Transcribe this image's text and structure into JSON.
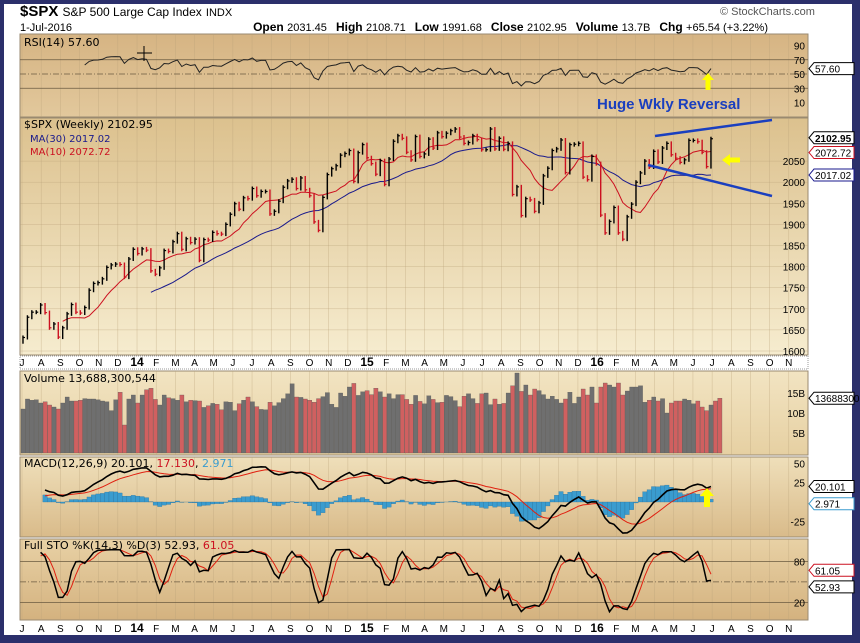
{
  "header": {
    "symbol": "$SPX",
    "name": "S&P 500 Large Cap Index",
    "exchange": "INDX",
    "date": "1-Jul-2016",
    "brand": "© StockCharts.com",
    "quote": [
      {
        "label": "Open",
        "value": "2031.45"
      },
      {
        "label": "High",
        "value": "2108.71"
      },
      {
        "label": "Low",
        "value": "1991.68"
      },
      {
        "label": "Close",
        "value": "2102.95"
      },
      {
        "label": "Volume",
        "value": "13.7B"
      },
      {
        "label": "Chg",
        "value": "+65.54 (+3.22%)"
      }
    ]
  },
  "colors": {
    "frame": "#2b2f6b",
    "up_bar": "#000000",
    "down_bar": "#cc1020",
    "ma30": "#1a1a8c",
    "ma10": "#cc1020",
    "volume_up": "#6f6f6f",
    "volume_down": "#d06060",
    "macd_hist": "#3a9ccf",
    "annotation": "#1a3fbf",
    "arrow": "#ffff00"
  },
  "chart_data": [
    {
      "type": "ohlc-weekly",
      "panel": "price",
      "title": "$SPX (Weekly) 2102.95",
      "legend": [
        {
          "name": "MA(30) 2017.02",
          "color": "#1a1a8c"
        },
        {
          "name": "MA(10) 2072.72",
          "color": "#cc1020"
        }
      ],
      "yticks": [
        1600,
        1650,
        1700,
        1750,
        1800,
        1850,
        1900,
        1950,
        2000,
        2050
      ],
      "ylim": [
        1580,
        2140
      ],
      "last_labels": [
        "2102.95",
        "2072.72",
        "2017.02"
      ],
      "x_start": "2013-07-05",
      "x_end": "2016-07-01",
      "close": [
        1632,
        1680,
        1692,
        1692,
        1709,
        1691,
        1655,
        1664,
        1633,
        1655,
        1688,
        1710,
        1692,
        1690,
        1703,
        1744,
        1760,
        1762,
        1771,
        1798,
        1804,
        1806,
        1805,
        1775,
        1818,
        1841,
        1831,
        1842,
        1839,
        1790,
        1782,
        1797,
        1838,
        1836,
        1859,
        1878,
        1841,
        1866,
        1857,
        1865,
        1815,
        1864,
        1863,
        1881,
        1878,
        1877,
        1900,
        1924,
        1949,
        1936,
        1963,
        1961,
        1985,
        1968,
        1978,
        1978,
        1925,
        1931,
        1955,
        1988,
        2003,
        2007,
        1985,
        2010,
        1982,
        1968,
        1906,
        1886,
        1964,
        2018,
        2032,
        2039,
        2064,
        2068,
        2075,
        2002,
        2070,
        2089,
        2058,
        2044,
        2019,
        2051,
        1995,
        2055,
        2097,
        2110,
        2104,
        2071,
        2053,
        2108,
        2061,
        2067,
        2102,
        2081,
        2117,
        2108,
        2116,
        2122,
        2126,
        2107,
        2092,
        2094,
        2110,
        2101,
        2077,
        2077,
        2126,
        2079,
        2104,
        2078,
        2092,
        1971,
        1989,
        1921,
        1961,
        1958,
        1931,
        1951,
        2015,
        2033,
        2075,
        2079,
        2100,
        2023,
        2089,
        2090,
        2092,
        2012,
        2006,
        2061,
        2044,
        1922,
        1880,
        1907,
        1940,
        1880,
        1865,
        1918,
        1948,
        2000,
        2022,
        2050,
        2036,
        2073,
        2048,
        2081,
        2092,
        2065,
        2057,
        2047,
        2053,
        2099,
        2099,
        2096,
        2071,
        2037,
        2103
      ],
      "months": [
        "J",
        "A",
        "S",
        "O",
        "N",
        "D",
        "14",
        "F",
        "M",
        "A",
        "M",
        "J",
        "J",
        "A",
        "S",
        "O",
        "N",
        "D",
        "15",
        "F",
        "M",
        "A",
        "M",
        "J",
        "J",
        "A",
        "S",
        "O",
        "N",
        "D",
        "16",
        "F",
        "M",
        "A",
        "M",
        "J",
        "J",
        "A",
        "S",
        "O",
        "N"
      ]
    },
    {
      "type": "line",
      "panel": "rsi",
      "title": "RSI(14) 57.60",
      "yticks": [
        10,
        30,
        50,
        70,
        90
      ],
      "ylim": [
        0,
        100
      ],
      "last_label": "57.60"
    },
    {
      "type": "bar",
      "panel": "volume",
      "title": "Volume 13,688,300,544",
      "unit": "B",
      "yticks": [
        {
          "v": 5,
          "label": "5B"
        },
        {
          "v": 10,
          "label": "10B"
        },
        {
          "v": 15,
          "label": "15B"
        }
      ],
      "last_label": "13688300544",
      "values": [
        11,
        13.5,
        13.2,
        13.3,
        12.5,
        12.8,
        12,
        11.5,
        11,
        12.5,
        14,
        13,
        13,
        13.2,
        13.6,
        13.5,
        13.5,
        13.3,
        13,
        12.8,
        10.6,
        13.3,
        15.2,
        7,
        13.5,
        14.5,
        12.5,
        14.5,
        15.8,
        16.2,
        13.4,
        12,
        14.5,
        13.8,
        13.6,
        13.2,
        14.5,
        12.8,
        13.2,
        13.1,
        13,
        11.4,
        11.8,
        12.4,
        12.2,
        10.8,
        12.8,
        12.7,
        10.6,
        12.3,
        13.2,
        14,
        12.8,
        11.6,
        10.9,
        10.8,
        12.7,
        11.8,
        12.6,
        13.6,
        14.8,
        17.3,
        14,
        13.9,
        13.5,
        13.2,
        12.7,
        13.6,
        14.1,
        15.1,
        12.2,
        11.4,
        15,
        14.2,
        16.5,
        17.4,
        14.4,
        15.3,
        15.6,
        14.6,
        16.2,
        15.3,
        14,
        14.8,
        13.6,
        14.6,
        14.6,
        13.4,
        12.2,
        14.4,
        12.9,
        12.3,
        14.3,
        13.4,
        12.6,
        12.7,
        14.4,
        14.1,
        13.1,
        11.6,
        14.2,
        14.8,
        13.6,
        12.4,
        14.8,
        15,
        12.1,
        13.5,
        12.2,
        12.4,
        15,
        16.8,
        20,
        15.4,
        17,
        14.5,
        16,
        15.6,
        14.6,
        13.5,
        14.2,
        13.4,
        12.5,
        13.5,
        15.2,
        12.4,
        14,
        16,
        14.5,
        16.5,
        12.5,
        16.5,
        17.5,
        17,
        16.5,
        17.5,
        14.5,
        15.5,
        16.5,
        16.5,
        16.8,
        12.7,
        13.2,
        14,
        13,
        13.6,
        10,
        12.5,
        13,
        13,
        13.5,
        13.2,
        12.3,
        13,
        11.5,
        10.6,
        12,
        13,
        13.7
      ]
    },
    {
      "type": "line",
      "panel": "macd",
      "title": "MACD(12,26,9)",
      "values_text": [
        "20.101",
        "17.130",
        "2.971"
      ],
      "yticks": [
        -25,
        25,
        50
      ],
      "last_labels": [
        "20.101",
        "2.971"
      ]
    },
    {
      "type": "line",
      "panel": "stochastic",
      "title": "Full STO %K(14,3) %D(3)",
      "values_text": [
        "52.93",
        "61.05"
      ],
      "yticks": [
        20,
        50,
        80
      ],
      "last_labels": [
        "61.05",
        "52.93"
      ]
    }
  ],
  "annotations": {
    "text": "Huge Wkly Reversal",
    "arrows": [
      "up-arrow-rsi",
      "left-arrow-price",
      "up-arrow-macd"
    ]
  }
}
